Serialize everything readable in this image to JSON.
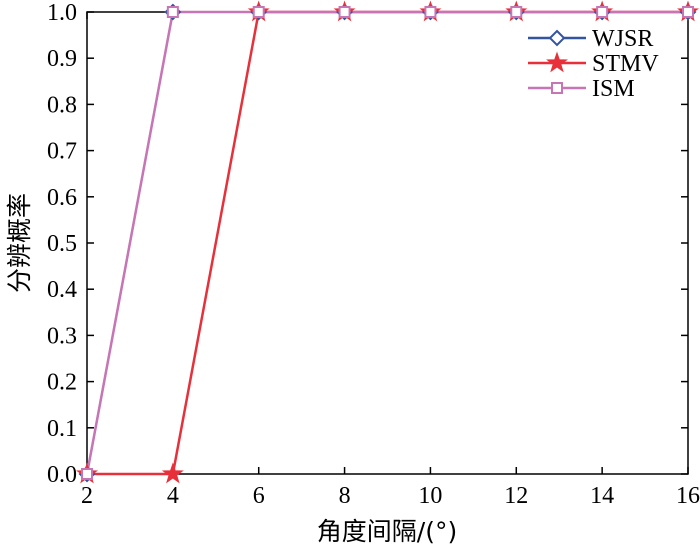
{
  "chart_data": {
    "type": "line",
    "xlabel": "角度间隔/(°)",
    "ylabel": "分辨概率",
    "xlim": [
      2,
      16
    ],
    "ylim": [
      0,
      1.0
    ],
    "xticks": [
      2,
      4,
      6,
      8,
      10,
      12,
      14,
      16
    ],
    "yticks": [
      0.0,
      0.1,
      0.2,
      0.3,
      0.4,
      0.5,
      0.6,
      0.7,
      0.8,
      0.9,
      1.0
    ],
    "ytick_labels": [
      "0.0",
      "0.1",
      "0.2",
      "0.3",
      "0.4",
      "0.5",
      "0.6",
      "0.7",
      "0.8",
      "0.9",
      "1.0"
    ],
    "x": [
      2,
      4,
      6,
      8,
      10,
      12,
      14,
      16
    ],
    "grid": false,
    "legend_position": "top-right",
    "series": [
      {
        "name": "WJSR",
        "values": [
          0,
          1,
          1,
          1,
          1,
          1,
          1,
          1
        ],
        "color": "#3355a0",
        "marker": "diamond"
      },
      {
        "name": "STMV",
        "values": [
          0,
          0,
          1,
          1,
          1,
          1,
          1,
          1
        ],
        "color": "#e8303a",
        "marker": "star"
      },
      {
        "name": "ISM",
        "values": [
          0,
          1,
          1,
          1,
          1,
          1,
          1,
          1
        ],
        "color": "#c875b5",
        "marker": "square"
      }
    ]
  }
}
